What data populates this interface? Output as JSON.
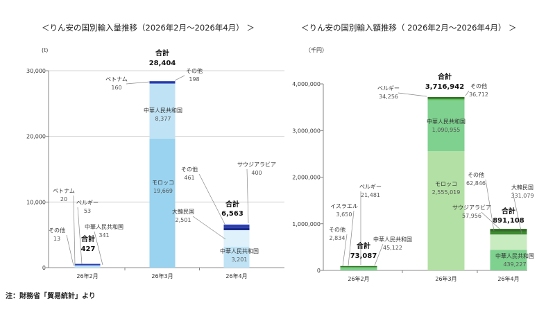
{
  "note": "注：財務省「貿易統計」より",
  "chart_data": [
    {
      "type": "bar",
      "stacked": true,
      "title": "＜りん安の国別輸入量推移（2026年2月～2026年4月） ＞",
      "ylabel": "(t)",
      "ylim": [
        0,
        30000
      ],
      "yticks": [
        0,
        10000,
        20000,
        30000
      ],
      "ytick_labels": [
        "0",
        "10,000",
        "20,000",
        "30,000"
      ],
      "categories": [
        "26年2月",
        "26年3月",
        "26年4月"
      ],
      "total_label": "合計",
      "totals": [
        427,
        28404,
        6563
      ],
      "total_texts": [
        "427",
        "28,404",
        "6,563"
      ],
      "grid": true,
      "series": [
        {
          "name": "モロッコ",
          "color": "#9ad3ef",
          "values": [
            0,
            19669,
            0
          ]
        },
        {
          "name": "中華人民共和国",
          "color": "#bfe3f5",
          "values": [
            341,
            8377,
            3201
          ]
        },
        {
          "name": "大韓民国",
          "color": "#dff1fa",
          "values": [
            0,
            0,
            2501
          ]
        },
        {
          "name": "ベトナム",
          "color": "#2233aa",
          "values": [
            20,
            160,
            0
          ]
        },
        {
          "name": "ベルギー",
          "color": "#3a5fc8",
          "values": [
            53,
            0,
            0
          ]
        },
        {
          "name": "サウジアラビア",
          "color": "#1a2a8a",
          "values": [
            0,
            0,
            400
          ]
        },
        {
          "name": "その他",
          "color": "#2b3fb0",
          "values": [
            13,
            198,
            461
          ]
        }
      ],
      "annotations": [
        {
          "name": "その他",
          "value": "13"
        },
        {
          "name": "ベトナム",
          "value": "20"
        },
        {
          "name": "ベルギー",
          "value": "53"
        },
        {
          "name": "中華人民共和国",
          "value": "341"
        },
        {
          "name": "ベトナム",
          "value": "160"
        },
        {
          "name": "その他",
          "value": "198"
        },
        {
          "name": "中華人民共和国",
          "value": "8,377"
        },
        {
          "name": "モロッコ",
          "value": "19,669"
        },
        {
          "name": "その他",
          "value": "461"
        },
        {
          "name": "サウジアラビア",
          "value": "400"
        },
        {
          "name": "大韓民国",
          "value": "2,501"
        },
        {
          "name": "中華人民共和国",
          "value": "3,201"
        }
      ]
    },
    {
      "type": "bar",
      "stacked": true,
      "title": "＜りん安の国別輸入額推移（ 2026年2月～2026年4月） ＞",
      "ylabel": "（千円）",
      "ylim": [
        0,
        4000000
      ],
      "yticks": [
        0,
        1000000,
        2000000,
        3000000,
        4000000
      ],
      "ytick_labels": [
        "0",
        "1,000,000",
        "2,000,000",
        "3,000,000",
        "4,000,000"
      ],
      "categories": [
        "26年2月",
        "26年3月",
        "26年4月"
      ],
      "total_label": "合計",
      "totals": [
        73087,
        3716942,
        891108
      ],
      "total_texts": [
        "73,087",
        "3,716,942",
        "891,108"
      ],
      "grid": false,
      "series": [
        {
          "name": "モロッコ",
          "color": "#b3e0a4",
          "values": [
            0,
            2555019,
            0
          ]
        },
        {
          "name": "中華人民共和国",
          "color": "#7ed18e",
          "values": [
            45122,
            1090955,
            439227
          ]
        },
        {
          "name": "大韓民国",
          "color": "#c9ebc0",
          "values": [
            0,
            0,
            331079
          ]
        },
        {
          "name": "イスラエル",
          "color": "#6cc76c",
          "values": [
            3650,
            0,
            0
          ]
        },
        {
          "name": "ベルギー",
          "color": "#5fbf5f",
          "values": [
            21481,
            34256,
            0
          ]
        },
        {
          "name": "サウジアラビア",
          "color": "#3c8a2e",
          "values": [
            0,
            0,
            57956
          ]
        },
        {
          "name": "その他",
          "color": "#2f6e22",
          "values": [
            2834,
            36712,
            62846
          ]
        }
      ],
      "annotations": [
        {
          "name": "その他",
          "value": "2,834"
        },
        {
          "name": "イスラエル",
          "value": "3,650"
        },
        {
          "name": "ベルギー",
          "value": "21,481"
        },
        {
          "name": "中華人民共和国",
          "value": "45,122"
        },
        {
          "name": "ベルギー",
          "value": "34,256"
        },
        {
          "name": "その他",
          "value": "36,712"
        },
        {
          "name": "中華人民共和国",
          "value": "1,090,955"
        },
        {
          "name": "モロッコ",
          "value": "2,555,019"
        },
        {
          "name": "その他",
          "value": "62,846"
        },
        {
          "name": "大韓民国",
          "value": "331,079"
        },
        {
          "name": "サウジアラビア",
          "value": "57,956"
        },
        {
          "name": "中華人民共和国",
          "value": "439,227"
        }
      ]
    }
  ]
}
